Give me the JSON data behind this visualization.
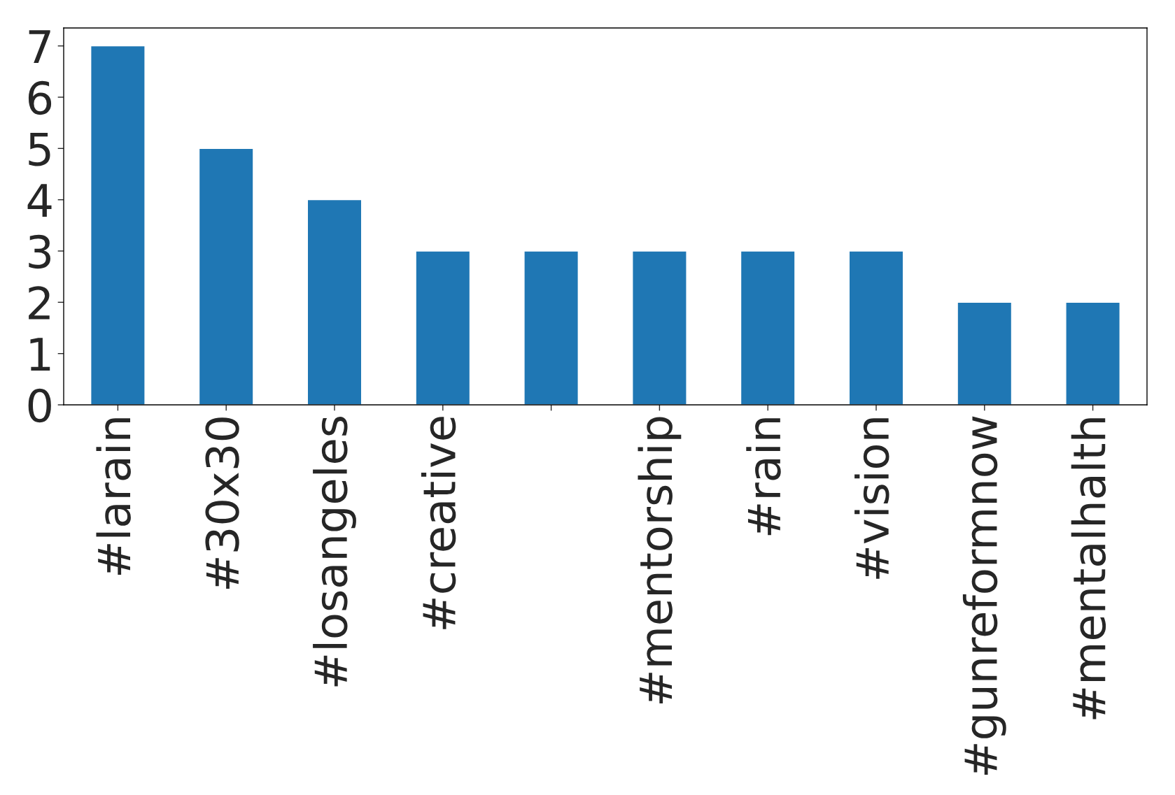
{
  "chart_data": {
    "type": "bar",
    "categories": [
      "#larain",
      "#30x30",
      "#losangeles",
      "#creative",
      null,
      "#mentorship",
      "#rain",
      "#vision",
      "#gunreformnow",
      "#mentalhalth"
    ],
    "values": [
      7,
      5,
      4,
      3,
      3,
      3,
      3,
      3,
      2,
      2
    ],
    "color": "#1f77b4",
    "ylim": [
      0,
      7.35
    ],
    "yticks": [
      0,
      1,
      2,
      3,
      4,
      5,
      6,
      7
    ],
    "grid": false
  }
}
